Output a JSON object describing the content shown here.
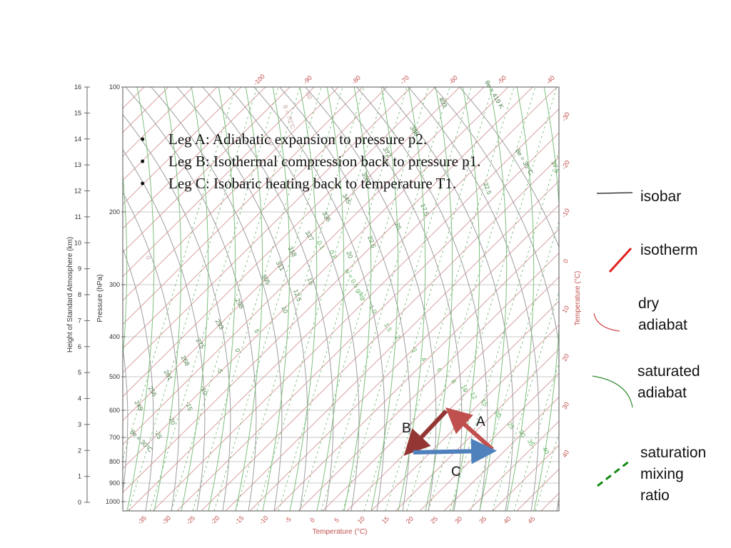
{
  "bullets": [
    "Leg A: Adiabatic expansion to pressure p2.",
    "Leg B: Isothermal compression back to pressure p1.",
    "Leg C: Isobaric heating back to temperature T1."
  ],
  "legend": {
    "isobar": "isobar",
    "isotherm": "isotherm",
    "dry_adiabat": [
      "dry",
      "adiabat"
    ],
    "saturated_adiabat": [
      "saturated",
      "adiabat"
    ],
    "mixing_ratio": [
      "saturation",
      "mixing",
      "ratio"
    ]
  },
  "triangle": {
    "label_a": "A",
    "label_b": "B",
    "label_c": "C",
    "colors": {
      "a": "#c0504d",
      "b": "#943634",
      "c": "#4f81bd"
    }
  },
  "colors": {
    "isobar": "#c8c8c8",
    "isotherm": "#d9a0a0",
    "isotherm_label": "#c0504d",
    "dry_adiabat": "#9e9e9e",
    "sat_adiabat": "#7fbf7f",
    "mixing_ratio": "#66b366",
    "legend_isotherm": "#e02020",
    "legend_dry": "#d04040",
    "legend_sat": "#2e8b2e",
    "legend_mix": "#138a13"
  },
  "chart": {
    "left_axis_title": "Height of Standard Atmosphere (km)",
    "pressure_axis_title": "Pressure (hPa)",
    "right_axis_title": "Temperature (°C)",
    "bottom_axis_title": "Temperature (°C)",
    "height_ticks": [
      "16",
      "15",
      "14",
      "13",
      "12",
      "11",
      "10",
      "9",
      "8",
      "7",
      "6",
      "5",
      "4",
      "3",
      "2",
      "1",
      "0"
    ],
    "pressure_ticks": [
      "100",
      "200",
      "300",
      "400",
      "500",
      "600",
      "700",
      "800",
      "900",
      "1000"
    ],
    "bottom_temp_ticks": [
      "-35",
      "-30",
      "-25",
      "-20",
      "-15",
      "-10",
      "-5",
      "0",
      "5",
      "10",
      "15",
      "20",
      "25",
      "30",
      "35",
      "40",
      "45"
    ],
    "top_temp_ticks": [
      "-100",
      "-90",
      "-80",
      "-70",
      "-60",
      "-50",
      "-40"
    ],
    "right_temp_ticks": [
      "-30",
      "-20",
      "-10",
      "0",
      "10",
      "20",
      "30",
      "40"
    ],
    "dry_adiabat_labels": [
      "403",
      "386",
      "372",
      "358",
      "345",
      "336",
      "327",
      "318",
      "311",
      "305",
      "298",
      "293",
      "275",
      "268",
      "261",
      "256",
      "249"
    ],
    "theta_e_labels": [
      "θe = 419 K",
      "θe = 35°C",
      "θe = 30°C"
    ],
    "sat_adiabat_labels": [
      "37.5",
      "32.5",
      "25",
      "22.5",
      "20",
      "17.5",
      "15",
      "12.5",
      "10",
      "5",
      "0",
      "-5",
      "-10",
      "-15",
      "-20",
      "-25"
    ],
    "mixing_ratio_labels": [
      "w = 0.5 g/kg",
      "0.1",
      "0.2",
      "1.0",
      "1.5",
      "2",
      "3",
      "4",
      "6",
      "8",
      "10",
      "12",
      "15",
      "20",
      "25",
      "30",
      "35",
      "40"
    ],
    "faint_labels": [
      "θ = 70°C",
      "60",
      "50",
      "0"
    ]
  }
}
